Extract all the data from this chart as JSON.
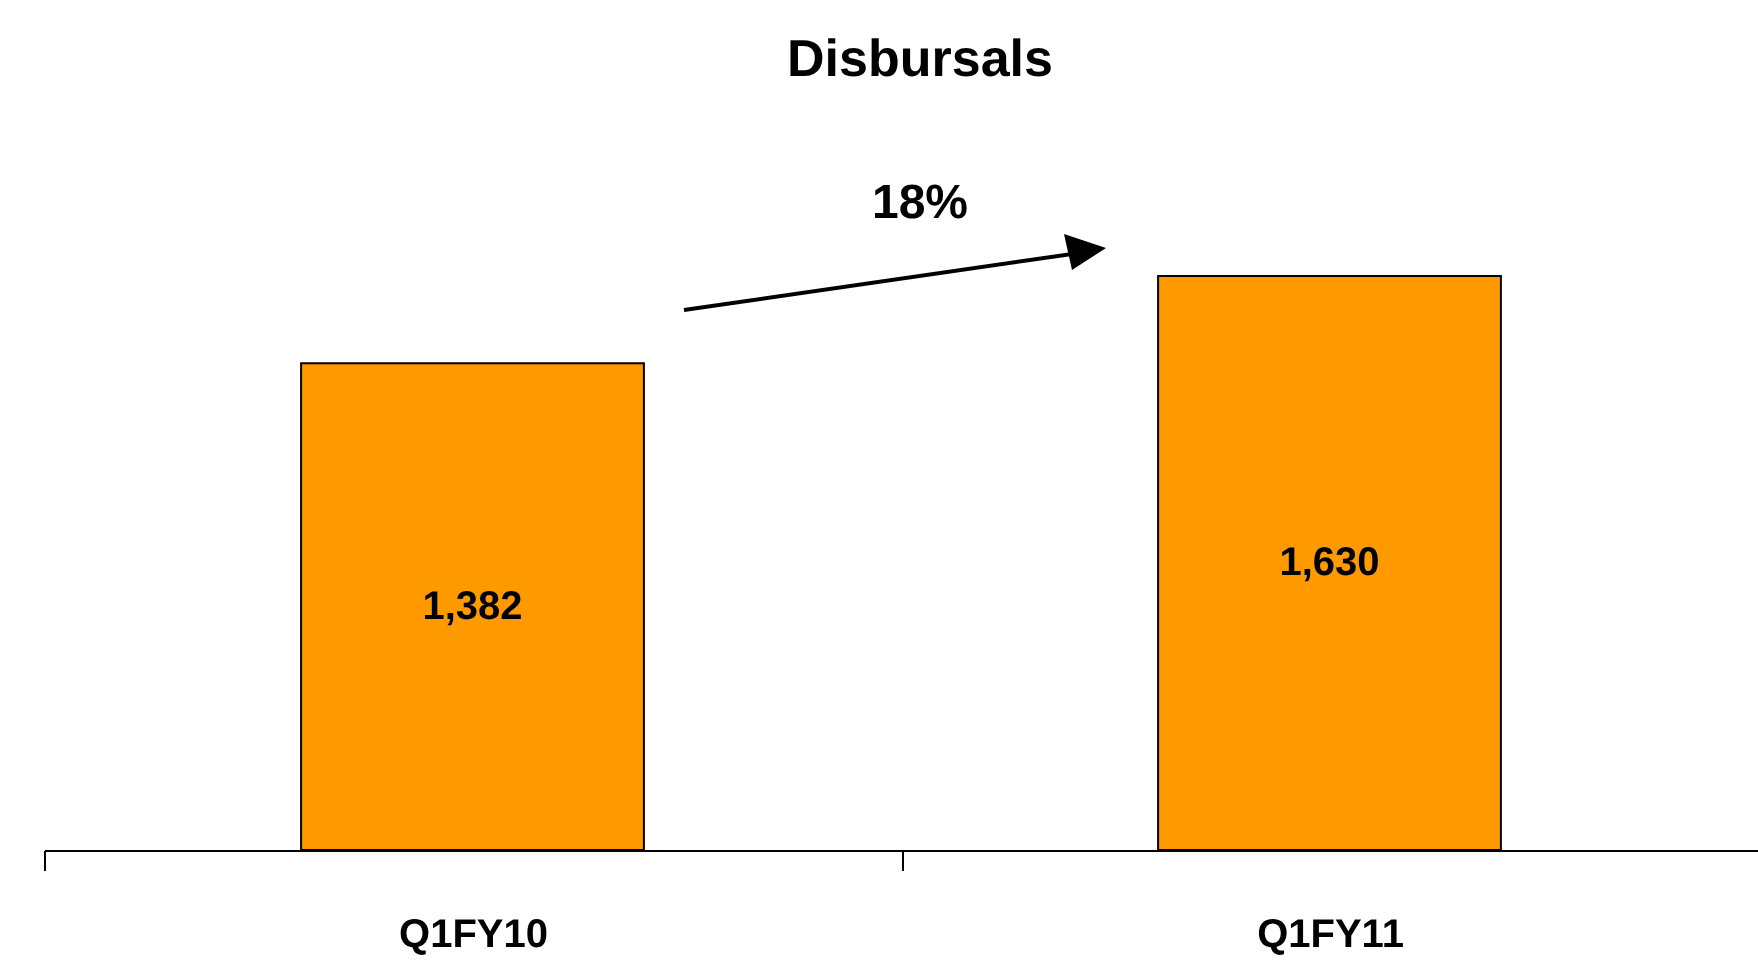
{
  "chart_data": {
    "type": "bar",
    "title": "Disbursals",
    "categories": [
      "Q1FY10",
      "Q1FY11"
    ],
    "series": [
      {
        "color": "#ff9900",
        "values": [
          1382,
          1630
        ],
        "value_labels": [
          "1,382",
          "1,630"
        ]
      }
    ],
    "annotations": [
      "18%"
    ],
    "grid": false,
    "tick_labels": "x"
  }
}
